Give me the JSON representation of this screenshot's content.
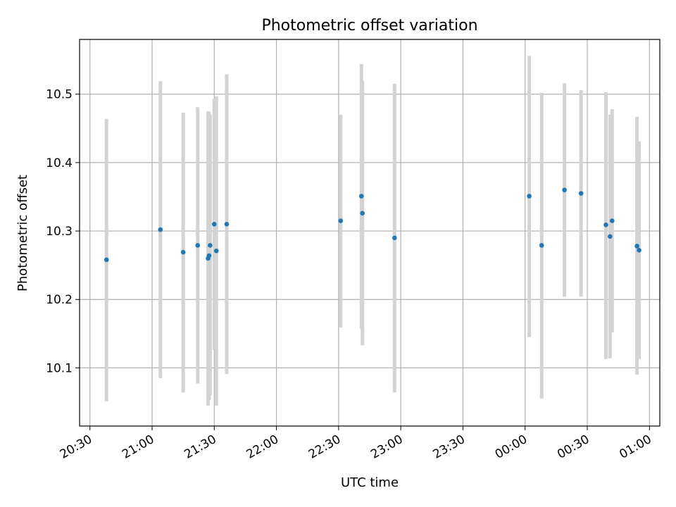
{
  "chart_data": {
    "type": "scatter",
    "title": "Photometric offset variation",
    "xlabel": "UTC time",
    "ylabel": "Photometric offset",
    "x_axis_kind": "time",
    "x_ticks": [
      "20:30",
      "21:00",
      "21:30",
      "22:00",
      "22:30",
      "23:00",
      "23:30",
      "00:00",
      "00:30",
      "01:00"
    ],
    "y_ticks": [
      "10.1",
      "10.2",
      "10.3",
      "10.4",
      "10.5"
    ],
    "ylim": [
      10.015,
      10.58
    ],
    "xlim": [
      "20:25",
      "01:05"
    ],
    "grid": true,
    "point_color": "#1f77b4",
    "errorbar_color": "#d3d3d3",
    "points": [
      {
        "time": "20:38",
        "y": 10.258,
        "ylow": 10.051,
        "yhigh": 10.464
      },
      {
        "time": "21:04",
        "y": 10.302,
        "ylow": 10.085,
        "yhigh": 10.519
      },
      {
        "time": "21:15",
        "y": 10.269,
        "ylow": 10.064,
        "yhigh": 10.473
      },
      {
        "time": "21:22",
        "y": 10.279,
        "ylow": 10.077,
        "yhigh": 10.481
      },
      {
        "time": "21:27",
        "y": 10.26,
        "ylow": 10.045,
        "yhigh": 10.475
      },
      {
        "time": "21:27.5",
        "y": 10.264,
        "ylow": 10.053,
        "yhigh": 10.474
      },
      {
        "time": "21:28",
        "y": 10.279,
        "ylow": 10.06,
        "yhigh": 10.47
      },
      {
        "time": "21:30",
        "y": 10.31,
        "ylow": 10.126,
        "yhigh": 10.493
      },
      {
        "time": "21:31",
        "y": 10.271,
        "ylow": 10.045,
        "yhigh": 10.497
      },
      {
        "time": "21:36",
        "y": 10.31,
        "ylow": 10.091,
        "yhigh": 10.529
      },
      {
        "time": "22:31",
        "y": 10.315,
        "ylow": 10.159,
        "yhigh": 10.47
      },
      {
        "time": "22:41",
        "y": 10.351,
        "ylow": 10.157,
        "yhigh": 10.544
      },
      {
        "time": "22:41.5",
        "y": 10.326,
        "ylow": 10.133,
        "yhigh": 10.519
      },
      {
        "time": "22:57",
        "y": 10.29,
        "ylow": 10.064,
        "yhigh": 10.515
      },
      {
        "time": "00:02",
        "y": 10.351,
        "ylow": 10.145,
        "yhigh": 10.556
      },
      {
        "time": "00:08",
        "y": 10.279,
        "ylow": 10.055,
        "yhigh": 10.502
      },
      {
        "time": "00:19",
        "y": 10.36,
        "ylow": 10.204,
        "yhigh": 10.516
      },
      {
        "time": "00:27",
        "y": 10.355,
        "ylow": 10.204,
        "yhigh": 10.506
      },
      {
        "time": "00:39",
        "y": 10.309,
        "ylow": 10.113,
        "yhigh": 10.503
      },
      {
        "time": "00:41",
        "y": 10.292,
        "ylow": 10.114,
        "yhigh": 10.47
      },
      {
        "time": "00:42",
        "y": 10.315,
        "ylow": 10.152,
        "yhigh": 10.478
      },
      {
        "time": "00:54",
        "y": 10.278,
        "ylow": 10.09,
        "yhigh": 10.467
      },
      {
        "time": "00:55",
        "y": 10.272,
        "ylow": 10.113,
        "yhigh": 10.431
      }
    ]
  }
}
